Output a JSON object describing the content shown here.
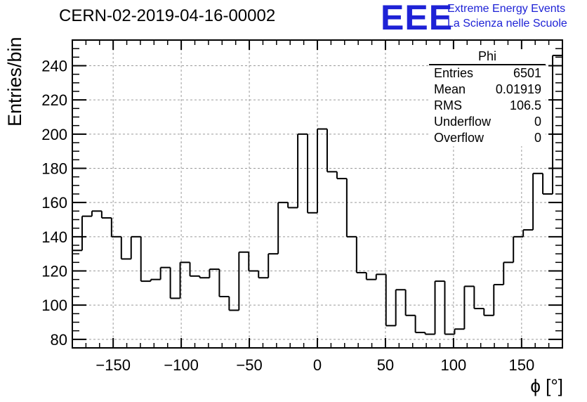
{
  "header": {
    "title": "CERN-02-2019-04-16-00002",
    "logo_text": "EEE",
    "logo_line1": "Extreme Energy Events",
    "logo_line2": "La Scienza nelle Scuole"
  },
  "stats_box": {
    "title": "Phi",
    "rows": [
      {
        "label": "Entries",
        "value": "6501"
      },
      {
        "label": "Mean",
        "value": "0.01919"
      },
      {
        "label": "RMS",
        "value": "106.5"
      },
      {
        "label": "Underflow",
        "value": "0"
      },
      {
        "label": "Overflow",
        "value": "0"
      }
    ]
  },
  "chart_data": {
    "type": "bar",
    "histogram": true,
    "title": "CERN-02-2019-04-16-00002",
    "xlabel": "ϕ [°]",
    "ylabel": "Entries/bin",
    "xlim": [
      -180,
      180
    ],
    "ylim": [
      75,
      255
    ],
    "bin_width": 7.2,
    "xticks": [
      -150,
      -100,
      -50,
      0,
      50,
      100,
      150
    ],
    "xtick_labels": [
      "−150",
      "−100",
      "−50",
      "0",
      "50",
      "100",
      "150"
    ],
    "yticks": [
      80,
      100,
      120,
      140,
      160,
      180,
      200,
      220,
      240
    ],
    "ytick_labels": [
      "80",
      "100",
      "120",
      "140",
      "160",
      "180",
      "200",
      "220",
      "240"
    ],
    "grid": true,
    "legend": "top-right stats box",
    "values": [
      132,
      152,
      155,
      151,
      140,
      127,
      140,
      114,
      115,
      122,
      104,
      125,
      117,
      116,
      121,
      105,
      97,
      131,
      120,
      116,
      130,
      160,
      157,
      200,
      154,
      203,
      178,
      174,
      140,
      119,
      115,
      118,
      88,
      109,
      94,
      84,
      83,
      114,
      83,
      86,
      111,
      98,
      94,
      112,
      125,
      140,
      144,
      177,
      165,
      246
    ],
    "series": [
      {
        "name": "Phi",
        "color": "#000000"
      }
    ]
  },
  "colors": {
    "grid": "#9a9a9a",
    "line": "#000000",
    "logo": "#1e22d6"
  }
}
